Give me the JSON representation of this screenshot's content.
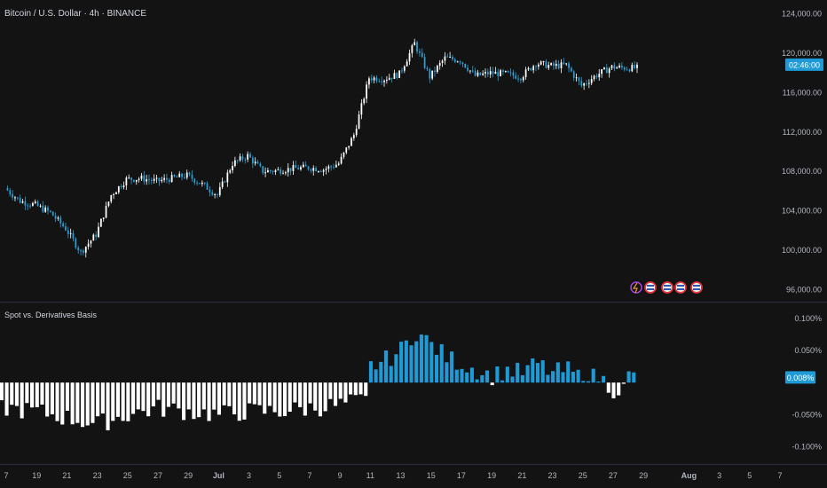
{
  "header": {
    "symbol_title": "Bitcoin / U.S. Dollar · 4h · BINANCE"
  },
  "indicator": {
    "title": "Spot vs. Derivatives Basis"
  },
  "colors": {
    "background": "#131313",
    "up": "#ffffff",
    "down": "#2a9fd6",
    "basis_pos": "#1e9ad6",
    "basis_neg": "#ffffff",
    "badge": "#1e9ad6",
    "axis_text": "#b2b5be",
    "divider": "#2a2e39"
  },
  "chart_data": [
    {
      "type": "candlestick",
      "title": "Bitcoin / U.S. Dollar · 4h · BINANCE",
      "x_ticks": [
        "7",
        "19",
        "21",
        "23",
        "25",
        "27",
        "29",
        "Jul",
        "3",
        "5",
        "7",
        "9",
        "11",
        "13",
        "15",
        "17",
        "19",
        "21",
        "23",
        "25",
        "27",
        "29",
        "Aug",
        "3",
        "5",
        "7"
      ],
      "y_ticks": [
        "124,000.00",
        "120,000.00",
        "116,000.00",
        "112,000.00",
        "108,000.00",
        "104,000.00",
        "100,000.00",
        "96,000.00"
      ],
      "ylim": [
        95500,
        124500
      ],
      "last_price_label": "02:46:00",
      "key_points": [
        {
          "date": "Jun 17",
          "close": 106300
        },
        {
          "date": "Jun 18",
          "close": 105000
        },
        {
          "date": "Jun 19",
          "close": 104600
        },
        {
          "date": "Jun 20",
          "close": 103800
        },
        {
          "date": "Jun 21",
          "close": 102200
        },
        {
          "date": "Jun 22",
          "close": 99800
        },
        {
          "date": "Jun 23",
          "close": 101600
        },
        {
          "date": "Jun 24",
          "close": 105600
        },
        {
          "date": "Jun 25",
          "close": 107200
        },
        {
          "date": "Jun 26",
          "close": 107300
        },
        {
          "date": "Jun 27",
          "close": 107000
        },
        {
          "date": "Jun 28",
          "close": 107300
        },
        {
          "date": "Jun 29",
          "close": 107600
        },
        {
          "date": "Jun 30",
          "close": 106700
        },
        {
          "date": "Jul 1",
          "close": 105600
        },
        {
          "date": "Jul 2",
          "close": 108800
        },
        {
          "date": "Jul 3",
          "close": 109600
        },
        {
          "date": "Jul 4",
          "close": 108000
        },
        {
          "date": "Jul 5",
          "close": 108100
        },
        {
          "date": "Jul 6",
          "close": 108300
        },
        {
          "date": "Jul 7",
          "close": 108400
        },
        {
          "date": "Jul 8",
          "close": 108200
        },
        {
          "date": "Jul 9",
          "close": 108800
        },
        {
          "date": "Jul 10",
          "close": 111700
        },
        {
          "date": "Jul 11",
          "close": 117500
        },
        {
          "date": "Jul 12",
          "close": 117400
        },
        {
          "date": "Jul 13",
          "close": 117900
        },
        {
          "date": "Jul 14",
          "close": 121000
        },
        {
          "date": "Jul 15",
          "close": 117600
        },
        {
          "date": "Jul 16",
          "close": 119500
        },
        {
          "date": "Jul 17",
          "close": 119300
        },
        {
          "date": "Jul 18",
          "close": 117700
        },
        {
          "date": "Jul 19",
          "close": 118000
        },
        {
          "date": "Jul 20",
          "close": 117900
        },
        {
          "date": "Jul 21",
          "close": 117600
        },
        {
          "date": "Jul 22",
          "close": 119000
        },
        {
          "date": "Jul 23",
          "close": 118700
        },
        {
          "date": "Jul 24",
          "close": 118800
        },
        {
          "date": "Jul 25",
          "close": 116700
        },
        {
          "date": "Jul 26",
          "close": 117800
        },
        {
          "date": "Jul 27",
          "close": 118600
        },
        {
          "date": "Jul 28",
          "close": 118500
        }
      ]
    },
    {
      "type": "bar",
      "title": "Spot vs. Derivatives Basis",
      "y_ticks": [
        "0.100%",
        "0.050%",
        "-0.050%",
        "-0.100%"
      ],
      "ylim": [
        -0.123,
        0.118
      ],
      "last_value_label": "0.008%",
      "key_points": [
        {
          "date": "Jun 17",
          "basis": -0.04
        },
        {
          "date": "Jun 19",
          "basis": -0.045
        },
        {
          "date": "Jun 21",
          "basis": -0.055
        },
        {
          "date": "Jun 23",
          "basis": -0.065
        },
        {
          "date": "Jun 25",
          "basis": -0.05
        },
        {
          "date": "Jun 27",
          "basis": -0.04
        },
        {
          "date": "Jun 29",
          "basis": -0.045
        },
        {
          "date": "Jul 1",
          "basis": -0.05
        },
        {
          "date": "Jul 3",
          "basis": -0.045
        },
        {
          "date": "Jul 5",
          "basis": -0.045
        },
        {
          "date": "Jul 7",
          "basis": -0.04
        },
        {
          "date": "Jul 9",
          "basis": -0.035
        },
        {
          "date": "Jul 10",
          "basis": -0.03
        },
        {
          "date": "Jul 11",
          "basis": 0.025
        },
        {
          "date": "Jul 12",
          "basis": 0.035
        },
        {
          "date": "Jul 13",
          "basis": 0.05
        },
        {
          "date": "Jul 14",
          "basis": 0.08
        },
        {
          "date": "Jul 15",
          "basis": 0.06
        },
        {
          "date": "Jul 16",
          "basis": 0.04
        },
        {
          "date": "Jul 17",
          "basis": 0.03
        },
        {
          "date": "Jul 18",
          "basis": 0.02
        },
        {
          "date": "Jul 19",
          "basis": 0.01
        },
        {
          "date": "Jul 20",
          "basis": 0.02
        },
        {
          "date": "Jul 21",
          "basis": 0.015
        },
        {
          "date": "Jul 22",
          "basis": 0.03
        },
        {
          "date": "Jul 23",
          "basis": 0.015
        },
        {
          "date": "Jul 24",
          "basis": 0.02
        },
        {
          "date": "Jul 25",
          "basis": 0.005
        },
        {
          "date": "Jul 26",
          "basis": 0.01
        },
        {
          "date": "Jul 27",
          "basis": -0.01
        },
        {
          "date": "Jul 28",
          "basis": 0.01
        }
      ]
    }
  ]
}
